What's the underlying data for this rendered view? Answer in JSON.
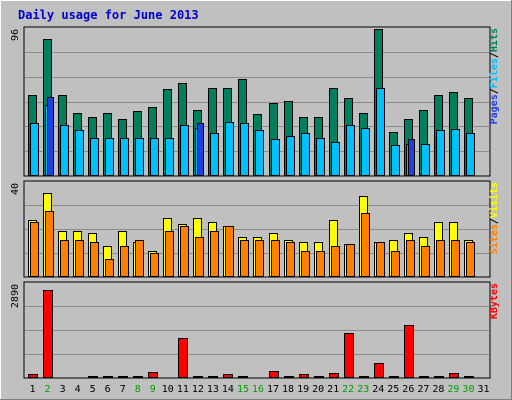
{
  "chart_data": {
    "type": "bar",
    "title": "Daily usage for June 2013",
    "categories": [
      "1",
      "2",
      "3",
      "4",
      "5",
      "6",
      "7",
      "8",
      "9",
      "10",
      "11",
      "12",
      "13",
      "14",
      "15",
      "16",
      "17",
      "18",
      "19",
      "20",
      "21",
      "22",
      "23",
      "24",
      "25",
      "26",
      "27",
      "28",
      "29",
      "30",
      "31"
    ],
    "weekend_days": [
      2,
      8,
      9,
      15,
      16,
      22,
      23,
      29,
      30
    ],
    "colors": {
      "title": "#0000cc",
      "hits": "#007f5f",
      "files": "#00bfff",
      "pages": "#1f3fdf",
      "visits": "#ffff00",
      "sites": "#ff8000",
      "kbytes": "#ff0000",
      "panel": "#c0c0c0",
      "weekend_label": "#00a000"
    },
    "panels": [
      {
        "id": "hits-files-pages",
        "ymax_label": "96",
        "ymax": 96,
        "legend": [
          "Pages",
          "/",
          "Files",
          "/",
          "Hits"
        ],
        "series": [
          {
            "name": "Hits",
            "values": [
              55,
              93,
              55,
              43,
              40,
              43,
              39,
              44,
              47,
              59,
              63,
              45,
              60,
              60,
              66,
              42,
              50,
              51,
              40,
              40,
              60,
              53,
              43,
              100,
              30,
              39,
              45,
              55,
              57,
              53,
              0
            ]
          },
          {
            "name": "Files",
            "values": [
              36,
              48,
              35,
              31,
              26,
              26,
              26,
              26,
              26,
              26,
              35,
              33,
              29,
              37,
              36,
              31,
              25,
              27,
              29,
              26,
              23,
              35,
              33,
              60,
              21,
              22,
              22,
              31,
              32,
              29,
              0
            ]
          },
          {
            "name": "Pages",
            "values": [
              0,
              54,
              0,
              0,
              0,
              0,
              0,
              0,
              0,
              0,
              0,
              36,
              0,
              0,
              0,
              0,
              0,
              0,
              0,
              0,
              0,
              0,
              0,
              0,
              0,
              25,
              0,
              0,
              0,
              0,
              0
            ]
          }
        ]
      },
      {
        "id": "visits-sites",
        "ymax_label": "40",
        "ymax": 40,
        "legend": [
          "Sites",
          "/",
          "Visits"
        ],
        "series": [
          {
            "name": "Visits",
            "values": [
              26,
              38,
              21,
              21,
              20,
              14,
              21,
              16,
              12,
              27,
              24,
              27,
              25,
              23,
              18,
              18,
              20,
              17,
              16,
              16,
              26,
              15,
              37,
              16,
              17,
              20,
              18,
              25,
              25,
              17,
              0
            ]
          },
          {
            "name": "Sites",
            "values": [
              25,
              30,
              17,
              17,
              16,
              8,
              14,
              17,
              11,
              21,
              23,
              18,
              21,
              23,
              17,
              17,
              17,
              16,
              12,
              12,
              14,
              15,
              29,
              16,
              12,
              17,
              14,
              17,
              17,
              16,
              0
            ]
          }
        ]
      },
      {
        "id": "kbytes",
        "ymax_label": "2890",
        "ymax": 2890,
        "legend": [
          "KBytes"
        ],
        "series": [
          {
            "name": "KBytes",
            "values": [
              120,
              2890,
              40,
              40,
              80,
              80,
              80,
              80,
              200,
              40,
              1330,
              80,
              80,
              120,
              80,
              40,
              240,
              80,
              120,
              80,
              160,
              1480,
              80,
              480,
              80,
              1730,
              80,
              80,
              160,
              80,
              0
            ]
          }
        ]
      }
    ]
  }
}
